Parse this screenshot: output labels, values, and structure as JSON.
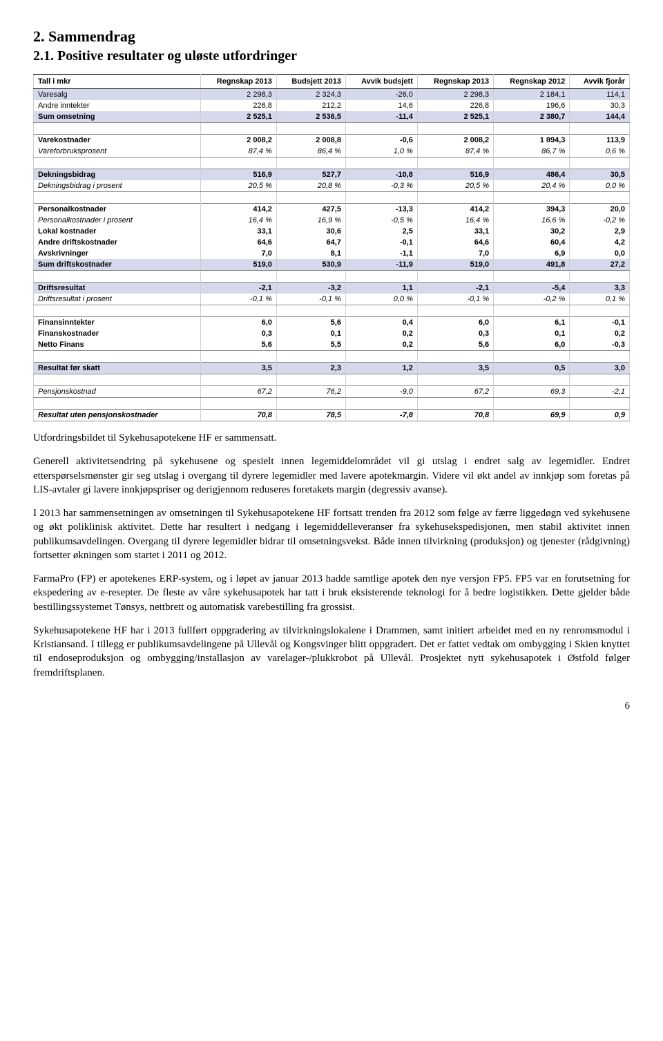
{
  "headings": {
    "h1": "2.   Sammendrag",
    "h2": "2.1.   Positive resultater og uløste utfordringer"
  },
  "table": {
    "corner_label": "Tall i mkr",
    "columns": [
      "Regnskap 2013",
      "Budsjett 2013",
      "Avvik budsjett",
      "Regnskap 2013",
      "Regnskap 2012",
      "Avvik fjorår"
    ],
    "colors": {
      "shaded_bg": "#d6d9ec",
      "border": "#cfcfcf",
      "header_border": "#000000"
    },
    "rows": [
      {
        "label": "Varesalg",
        "v": [
          "2 298,3",
          "2 324,3",
          "-26,0",
          "2 298,3",
          "2 184,1",
          "114,1"
        ],
        "shaded": true,
        "bordertop": true
      },
      {
        "label": "Andre inntekter",
        "v": [
          "226,8",
          "212,2",
          "14,6",
          "226,8",
          "196,6",
          "30,3"
        ]
      },
      {
        "label": "Sum omsetning",
        "v": [
          "2 525,1",
          "2 536,5",
          "-11,4",
          "2 525,1",
          "2 380,7",
          "144,4"
        ],
        "shaded": true,
        "bold": true,
        "borderbottom": true
      },
      {
        "spacer": true
      },
      {
        "label": "Varekostnader",
        "v": [
          "2 008,2",
          "2 008,8",
          "-0,6",
          "2 008,2",
          "1 894,3",
          "113,9"
        ],
        "bold": true,
        "bordertop": true
      },
      {
        "label": "Vareforbruksprosent",
        "v": [
          "87,4 %",
          "86,4 %",
          "1,0 %",
          "87,4 %",
          "86,7 %",
          "0,6 %"
        ],
        "italic": true,
        "borderbottom": true
      },
      {
        "spacer": true
      },
      {
        "label": "Dekningsbidrag",
        "v": [
          "516,9",
          "527,7",
          "-10,8",
          "516,9",
          "486,4",
          "30,5"
        ],
        "shaded": true,
        "bold": true,
        "bordertop": true
      },
      {
        "label": "Dekningsbidrag i prosent",
        "v": [
          "20,5 %",
          "20,8 %",
          "-0,3 %",
          "20,5 %",
          "20,4 %",
          "0,0 %"
        ],
        "italic": true,
        "borderbottom": true
      },
      {
        "spacer": true
      },
      {
        "label": "Personalkostnader",
        "v": [
          "414,2",
          "427,5",
          "-13,3",
          "414,2",
          "394,3",
          "20,0"
        ],
        "bold": true,
        "bordertop": true
      },
      {
        "label": "Personalkostnader i prosent",
        "v": [
          "16,4 %",
          "16,9 %",
          "-0,5 %",
          "16,4 %",
          "16,6 %",
          "-0,2 %"
        ],
        "italic": true
      },
      {
        "label": "Lokal kostnader",
        "v": [
          "33,1",
          "30,6",
          "2,5",
          "33,1",
          "30,2",
          "2,9"
        ],
        "bold": true
      },
      {
        "label": "Andre driftskostnader",
        "v": [
          "64,6",
          "64,7",
          "-0,1",
          "64,6",
          "60,4",
          "4,2"
        ],
        "bold": true
      },
      {
        "label": "Avskrivninger",
        "v": [
          "7,0",
          "8,1",
          "-1,1",
          "7,0",
          "6,9",
          "0,0"
        ],
        "bold": true
      },
      {
        "label": "Sum driftskostnader",
        "v": [
          "519,0",
          "530,9",
          "-11,9",
          "519,0",
          "491,8",
          "27,2"
        ],
        "shaded": true,
        "bold": true,
        "borderbottom": true
      },
      {
        "spacer": true
      },
      {
        "label": "Driftsresultat",
        "v": [
          "-2,1",
          "-3,2",
          "1,1",
          "-2,1",
          "-5,4",
          "3,3"
        ],
        "shaded": true,
        "bold": true,
        "bordertop": true
      },
      {
        "label": "Driftsresultat i prosent",
        "v": [
          "-0,1 %",
          "-0,1 %",
          "0,0 %",
          "-0,1 %",
          "-0,2 %",
          "0,1 %"
        ],
        "italic": true,
        "borderbottom": true
      },
      {
        "spacer": true
      },
      {
        "label": "Finansinntekter",
        "v": [
          "6,0",
          "5,6",
          "0,4",
          "6,0",
          "6,1",
          "-0,1"
        ],
        "bold": true,
        "bordertop": true
      },
      {
        "label": "Finanskostnader",
        "v": [
          "0,3",
          "0,1",
          "0,2",
          "0,3",
          "0,1",
          "0,2"
        ],
        "bold": true
      },
      {
        "label": "Netto Finans",
        "v": [
          "5,6",
          "5,5",
          "0,2",
          "5,6",
          "6,0",
          "-0,3"
        ],
        "bold": true,
        "borderbottom": true
      },
      {
        "spacer": true
      },
      {
        "label": "Resultat før skatt",
        "v": [
          "3,5",
          "2,3",
          "1,2",
          "3,5",
          "0,5",
          "3,0"
        ],
        "shaded": true,
        "bold": true,
        "bordertop": true,
        "borderbottom": true
      },
      {
        "spacer": true
      },
      {
        "label": "Pensjonskostnad",
        "v": [
          "67,2",
          "76,2",
          "-9,0",
          "67,2",
          "69,3",
          "-2,1"
        ],
        "italic": true,
        "bordertop": true,
        "borderbottom": true
      },
      {
        "spacer": true
      },
      {
        "label": "Resultat uten pensjonskostnader",
        "v": [
          "70,8",
          "78,5",
          "-7,8",
          "70,8",
          "69,9",
          "0,9"
        ],
        "italic": true,
        "bold": true,
        "bordertop": true,
        "borderbottom": true
      }
    ]
  },
  "paragraphs": [
    "Utfordringsbildet til Sykehusapotekene HF er sammensatt.",
    "Generell aktivitetsendring på sykehusene og spesielt innen legemiddelområdet vil gi utslag i endret salg av legemidler. Endret etterspørselsmønster gir seg utslag i overgang til dyrere legemidler med lavere apotekmargin. Videre vil økt andel av innkjøp som foretas på LIS-avtaler gi lavere innkjøpspriser og derigjennom reduseres foretakets margin (degressiv avanse).",
    "I 2013 har sammensetningen av omsetningen til Sykehusapotekene HF fortsatt trenden fra 2012 som følge av færre liggedøgn ved sykehusene og økt poliklinisk aktivitet. Dette har resultert i nedgang i legemiddelleveranser fra sykehusekspedisjonen, men stabil aktivitet innen publikumsavdelingen. Overgang til dyrere legemidler bidrar til omsetningsvekst. Både innen tilvirkning (produksjon) og tjenester (rådgivning) fortsetter økningen som startet i 2011 og 2012.",
    "FarmaPro (FP) er apotekenes ERP-system, og i løpet av januar 2013 hadde samtlige apotek den nye versjon FP5. FP5 var en forutsetning for ekspedering av e-resepter. De fleste av våre sykehusapotek har tatt i bruk eksisterende teknologi for å bedre logistikken. Dette gjelder både bestillingssystemet Tønsys, nettbrett og automatisk varebestilling fra grossist.",
    "Sykehusapotekene HF har i 2013 fullført oppgradering av tilvirkningslokalene i Drammen, samt initiert arbeidet med en ny renromsmodul i Kristiansand. I tillegg er publikumsavdelingene på Ullevål og Kongsvinger blitt oppgradert. Det er fattet vedtak om ombygging i Skien knyttet til endoseproduksjon og ombygging/installasjon av varelager-/plukkrobot på Ullevål. Prosjektet nytt sykehusapotek i Østfold følger fremdriftsplanen."
  ],
  "page_number": "6"
}
